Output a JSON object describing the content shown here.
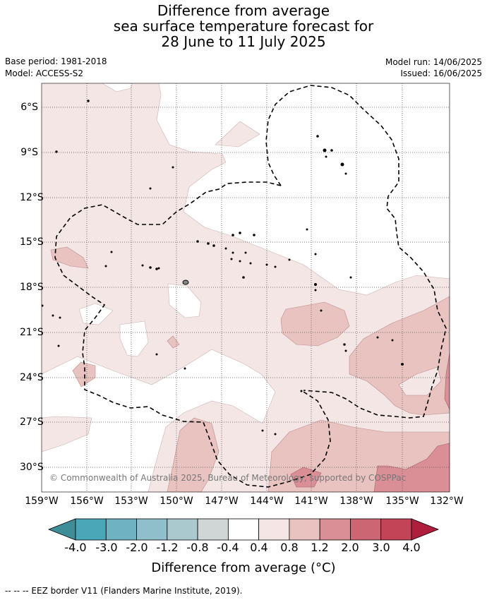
{
  "title": {
    "line1": "Difference from average",
    "line2": "sea surface temperature forecast for",
    "line3": "28 June to 11 July 2025"
  },
  "meta": {
    "base_period": "Base period: 1981-2018",
    "model": "Model: ACCESS-S2",
    "model_run": "Model run: 14/06/2025",
    "issued": "Issued: 16/06/2025"
  },
  "map": {
    "lat_labels": [
      "6°S",
      "9°S",
      "12°S",
      "15°S",
      "18°S",
      "21°S",
      "24°S",
      "27°S",
      "30°S"
    ],
    "lon_labels": [
      "159°W",
      "156°W",
      "153°W",
      "150°W",
      "147°W",
      "144°W",
      "141°W",
      "138°W",
      "135°W",
      "132°W"
    ],
    "copyright": "© Commonwealth of Australia 2025, Bureau of Meteorology, supported by COSPPac"
  },
  "colorbar": {
    "ticks": [
      "-4.0",
      "-3.0",
      "-2.0",
      "-1.2",
      "-0.8",
      "-0.4",
      "0.4",
      "0.8",
      "1.2",
      "2.0",
      "3.0",
      "4.0"
    ],
    "colors": [
      "#3e8e99",
      "#4aa7b7",
      "#6fb3c2",
      "#8fbfcb",
      "#a9c9ce",
      "#d0d5d6",
      "#ffffff",
      "#f4e6e5",
      "#e8c3c0",
      "#d98f95",
      "#cc6672",
      "#c34457",
      "#b01e3e"
    ],
    "title": "Difference from average (°C)"
  },
  "footnote": "-- -- -- EEZ border V11 (Flanders Marine Institute, 2019).",
  "palette": {
    "light_anomaly": "#f4e6e5",
    "mid_anomaly": "#e8c3c0",
    "strong_anomaly": "#d98f95",
    "grid": "#555555"
  }
}
